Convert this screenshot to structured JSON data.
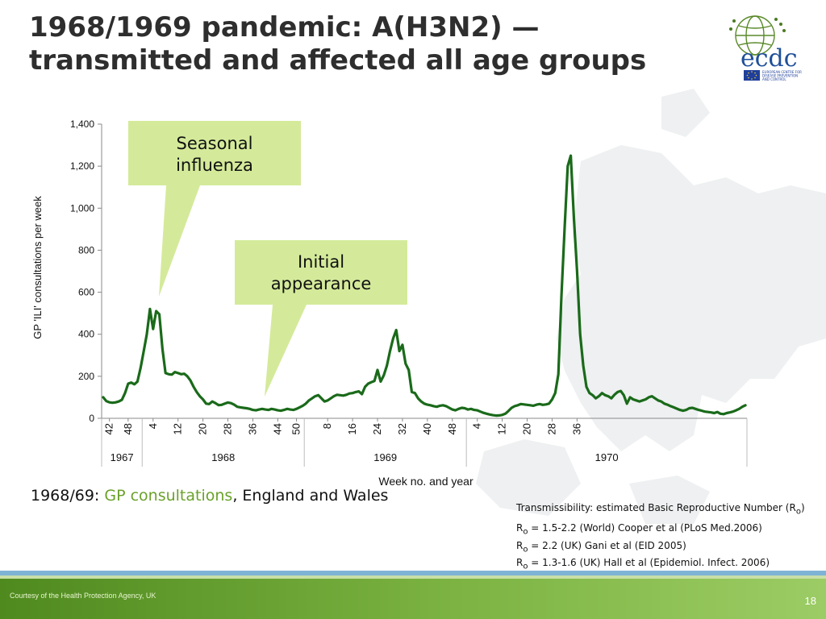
{
  "slide": {
    "title_line1": "1968/1969 pandemic: A(H3N2) —",
    "title_line2": "transmitted and affected all age groups",
    "page_number": "18",
    "credit": "Courtesy of the Health Protection Agency, UK"
  },
  "logo": {
    "wordmark": "ecdc",
    "line1": "EUROPEAN CENTRE FOR",
    "line2": "DISEASE PREVENTION",
    "line3": "AND CONTROL"
  },
  "caption": {
    "prefix": "1968/69: ",
    "highlight": "GP consultations",
    "suffix": ", England and Wales"
  },
  "notes": {
    "head_text": "Transmissibility: estimated Basic Reproductive Number (R",
    "head_sub": "o",
    "head_end": ")",
    "lines": [
      {
        "sub": "o",
        "text": " = 1.5-2.2 (World) Cooper et al (PLoS Med.2006)"
      },
      {
        "sub": "o",
        "text": " = 2.2 (UK) Gani et al (EID 2005)"
      },
      {
        "sub": "o",
        "text": " = 1.3-1.6 (UK) Hall et al (Epidemiol. Infect. 2006)"
      }
    ],
    "r_letter": "R"
  },
  "colors": {
    "line": "#1a6a1a",
    "callout": "#d4ea9a",
    "accent": "#6aa12a"
  },
  "chart_data": {
    "type": "line",
    "title": "",
    "xlabel": "Week no. and year",
    "ylabel": "GP 'ILI' consultations per week",
    "ylim": [
      0,
      1400
    ],
    "yticks": [
      0,
      200,
      400,
      600,
      800,
      1000,
      1200,
      1400
    ],
    "ytick_labels": [
      "0",
      "200",
      "400",
      "600",
      "800",
      "1,000",
      "1,200",
      "1,400"
    ],
    "x_start": {
      "year": 1967,
      "week": 40
    },
    "x_week_ticks": [
      {
        "year": 1967,
        "week": 42,
        "label": "42"
      },
      {
        "year": 1967,
        "week": 48,
        "label": "48"
      },
      {
        "year": 1968,
        "week": 4,
        "label": "4"
      },
      {
        "year": 1968,
        "week": 12,
        "label": "12"
      },
      {
        "year": 1968,
        "week": 20,
        "label": "20"
      },
      {
        "year": 1968,
        "week": 28,
        "label": "28"
      },
      {
        "year": 1968,
        "week": 36,
        "label": "36"
      },
      {
        "year": 1968,
        "week": 44,
        "label": "44"
      },
      {
        "year": 1968,
        "week": 50,
        "label": "50"
      },
      {
        "year": 1969,
        "week": 8,
        "label": "8"
      },
      {
        "year": 1969,
        "week": 16,
        "label": "16"
      },
      {
        "year": 1969,
        "week": 24,
        "label": "24"
      },
      {
        "year": 1969,
        "week": 32,
        "label": "32"
      },
      {
        "year": 1969,
        "week": 40,
        "label": "40"
      },
      {
        "year": 1969,
        "week": 48,
        "label": "48"
      },
      {
        "year": 1970,
        "week": 4,
        "label": "4"
      },
      {
        "year": 1970,
        "week": 12,
        "label": "12"
      },
      {
        "year": 1970,
        "week": 20,
        "label": "20"
      },
      {
        "year": 1970,
        "week": 28,
        "label": "28"
      },
      {
        "year": 1970,
        "week": 36,
        "label": "36"
      }
    ],
    "years": [
      "1967",
      "1968",
      "1969",
      "1970"
    ],
    "series": [
      {
        "values": [
          100,
          82,
          76,
          74,
          76,
          80,
          88,
          120,
          165,
          170,
          162,
          175,
          240,
          320,
          400,
          520,
          425,
          510,
          495,
          330,
          215,
          210,
          208,
          220,
          215,
          210,
          212,
          200,
          180,
          150,
          125,
          105,
          90,
          70,
          68,
          80,
          72,
          63,
          64,
          70,
          75,
          72,
          65,
          55,
          52,
          50,
          48,
          45,
          40,
          38,
          42,
          45,
          42,
          40,
          45,
          42,
          38,
          36,
          40,
          45,
          42,
          40,
          45,
          52,
          60,
          70,
          85,
          95,
          105,
          110,
          95,
          80,
          85,
          95,
          105,
          112,
          110,
          108,
          112,
          118,
          120,
          125,
          128,
          115,
          150,
          165,
          172,
          178,
          230,
          175,
          205,
          250,
          320,
          380,
          420,
          320,
          350,
          260,
          230,
          125,
          120,
          95,
          80,
          70,
          65,
          62,
          58,
          55,
          60,
          62,
          58,
          50,
          42,
          38,
          45,
          50,
          48,
          42,
          45,
          40,
          38,
          32,
          26,
          22,
          18,
          15,
          13,
          14,
          16,
          22,
          35,
          50,
          58,
          62,
          68,
          66,
          64,
          62,
          60,
          65,
          68,
          64,
          66,
          70,
          90,
          120,
          210,
          580,
          900,
          1200,
          1250,
          950,
          700,
          400,
          250,
          150,
          120,
          110,
          95,
          105,
          120,
          110,
          105,
          95,
          112,
          125,
          130,
          110,
          70,
          100,
          90,
          85,
          80,
          85,
          90,
          100,
          105,
          95,
          85,
          80,
          70,
          65,
          58,
          52,
          46,
          40,
          36,
          40,
          48,
          50,
          45,
          40,
          36,
          32,
          30,
          28,
          25,
          30,
          22,
          20,
          25,
          28,
          32,
          38,
          45,
          55,
          62
        ]
      }
    ]
  }
}
